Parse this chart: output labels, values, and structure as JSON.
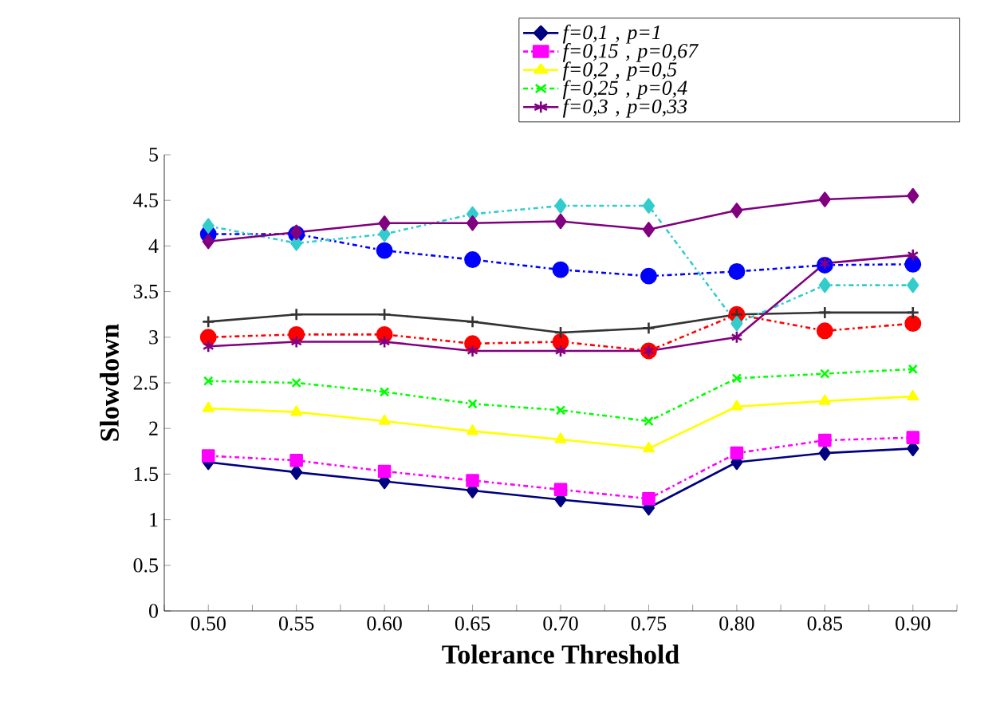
{
  "chart_data": {
    "type": "line",
    "xlabel": "Tolerance Threshold",
    "ylabel": "Slowdown",
    "categories": [
      "0.50",
      "0.55",
      "0.60",
      "0.65",
      "0.70",
      "0.75",
      "0.80",
      "0.85",
      "0.90"
    ],
    "ylim": [
      0,
      5
    ],
    "yticks": [
      0,
      0.5,
      1,
      1.5,
      2,
      2.5,
      3,
      3.5,
      4,
      4.5,
      5
    ],
    "grid": false,
    "legend": "top right",
    "series": [
      {
        "name": "*f=0,1 ,  p=1*",
        "color": "#000080",
        "marker": "diamond",
        "line_style": "solid",
        "values": [
          1.63,
          1.52,
          1.42,
          1.32,
          1.22,
          1.13,
          1.63,
          1.73,
          1.78
        ]
      },
      {
        "name": "*f=0,15 ,  p=0,67*",
        "color": "#ff00ff",
        "marker": "square",
        "line_style": "dashed",
        "values": [
          1.7,
          1.65,
          1.53,
          1.43,
          1.33,
          1.23,
          1.73,
          1.87,
          1.9
        ]
      },
      {
        "name": "*f=0,2 ,  p=0,5*",
        "color": "#ffff00",
        "marker": "triangle",
        "line_style": "solid",
        "values": [
          2.22,
          2.18,
          2.08,
          1.97,
          1.88,
          1.78,
          2.24,
          2.3,
          2.35
        ]
      },
      {
        "name": "*f=0,25 ,  p=0,4*",
        "color": "#00ff00",
        "marker": "cross",
        "line_style": "dashed",
        "values": [
          2.52,
          2.5,
          2.4,
          2.27,
          2.2,
          2.08,
          2.55,
          2.6,
          2.65
        ]
      },
      {
        "name": "*f=0,3 ,  p=0,33*",
        "color": "#800080",
        "marker": "cross",
        "line_style": "solid",
        "values": [
          2.9,
          2.95,
          2.95,
          2.85,
          2.85,
          2.85,
          3.0,
          3.81,
          3.9
        ]
      },
      {
        "color": "#ff0000",
        "marker": "circle",
        "line_style": "dashed",
        "values": [
          3.0,
          3.03,
          3.03,
          2.93,
          2.95,
          2.85,
          3.25,
          3.07,
          3.15
        ]
      },
      {
        "color": "#333333",
        "marker": "plus",
        "line_style": "solid",
        "values": [
          3.17,
          3.25,
          3.25,
          3.17,
          3.05,
          3.1,
          3.25,
          3.27,
          3.27
        ]
      },
      {
        "color": "#0000ff",
        "marker": "circle",
        "line_style": "dashed",
        "values": [
          4.13,
          4.13,
          3.95,
          3.85,
          3.74,
          3.67,
          3.72,
          3.79,
          3.8
        ]
      },
      {
        "color": "#33cccc",
        "marker": "diamond",
        "line_style": "dashed",
        "values": [
          4.22,
          4.03,
          4.13,
          4.35,
          4.44,
          4.44,
          3.15,
          3.57,
          3.57
        ]
      },
      {
        "color": "#800080",
        "marker": "diamond",
        "line_style": "solid",
        "values": [
          4.05,
          4.15,
          4.25,
          4.25,
          4.27,
          4.18,
          4.39,
          4.51,
          4.55
        ]
      }
    ]
  }
}
